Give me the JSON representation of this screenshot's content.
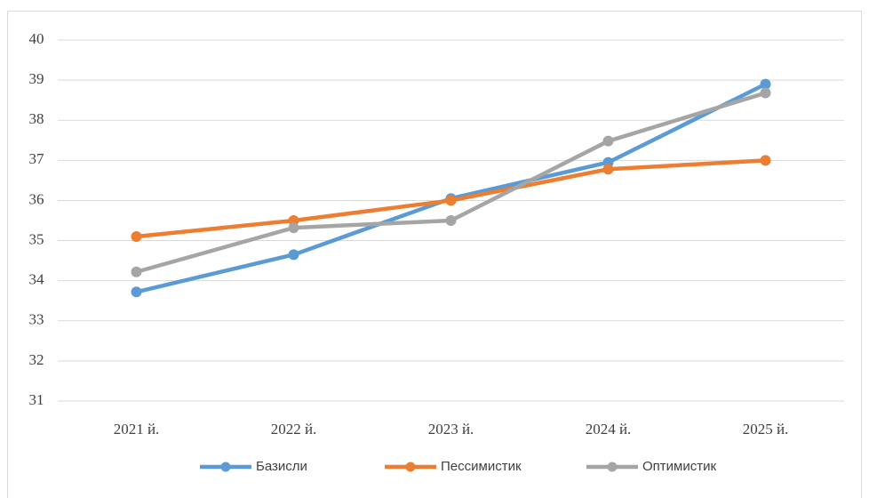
{
  "chart_data": {
    "type": "line",
    "categories": [
      "2021 й.",
      "2022 й.",
      "2023 й.",
      "2024 й.",
      "2025 й."
    ],
    "series": [
      {
        "name": "Базисли",
        "color": "#5b9bd5",
        "values": [
          33.72,
          34.65,
          36.05,
          36.95,
          38.9
        ]
      },
      {
        "name": "Пессимистик",
        "color": "#ed7d31",
        "values": [
          35.1,
          35.5,
          36.0,
          36.78,
          37.0
        ]
      },
      {
        "name": "Оптимистик",
        "color": "#a5a5a5",
        "values": [
          34.22,
          35.32,
          35.5,
          37.48,
          38.68
        ]
      }
    ],
    "ylim": [
      31,
      40
    ],
    "yticks": [
      31,
      32,
      33,
      34,
      35,
      36,
      37,
      38,
      39,
      40
    ],
    "grid": true,
    "legend": "bottom"
  }
}
